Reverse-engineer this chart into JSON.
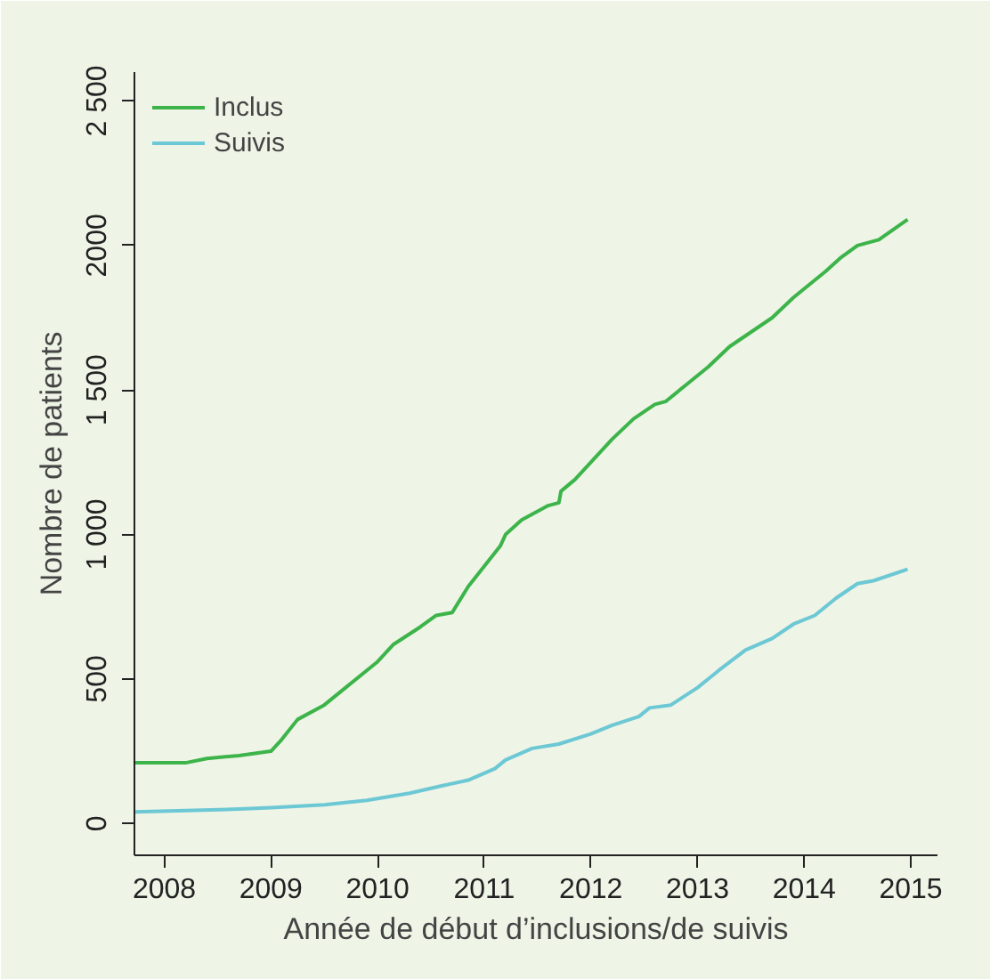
{
  "chart_data": {
    "type": "line",
    "xlabel": "Année de début d’inclusions/de suivis",
    "ylabel": "Nombre de patients",
    "xlim": [
      2007.72,
      2015.25
    ],
    "xticks": [
      2008,
      2009,
      2010,
      2011,
      2012,
      2013,
      2014,
      2015
    ],
    "ylim": [
      -110,
      2600
    ],
    "yticks": [
      0,
      500,
      {
        "value": 1000,
        "label": "1 000"
      },
      {
        "value": 1500,
        "label": "1 500"
      },
      2000,
      {
        "value": 2500,
        "label": "2 500"
      }
    ],
    "grid": false,
    "legend": "top left",
    "series": [
      {
        "name": "Inclus",
        "color": "#3cb44a",
        "x": [
          2007.72,
          2008.2,
          2008.4,
          2008.7,
          2009.0,
          2009.1,
          2009.25,
          2009.5,
          2009.7,
          2010.0,
          2010.15,
          2010.4,
          2010.55,
          2010.7,
          2010.85,
          2011.0,
          2011.15,
          2011.2,
          2011.35,
          2011.6,
          2011.7,
          2011.72,
          2011.85,
          2012.0,
          2012.2,
          2012.4,
          2012.6,
          2012.7,
          2012.9,
          2013.1,
          2013.3,
          2013.5,
          2013.7,
          2013.9,
          2014.0,
          2014.2,
          2014.35,
          2014.5,
          2014.7,
          2014.97
        ],
        "values": [
          210,
          210,
          225,
          235,
          250,
          290,
          360,
          410,
          470,
          560,
          620,
          680,
          720,
          730,
          820,
          890,
          960,
          1000,
          1050,
          1100,
          1110,
          1150,
          1190,
          1250,
          1330,
          1400,
          1450,
          1460,
          1520,
          1580,
          1650,
          1700,
          1750,
          1820,
          1850,
          1910,
          1960,
          2000,
          2020,
          2090
        ]
      },
      {
        "name": "Suivis",
        "color": "#6cc8d4",
        "x": [
          2007.72,
          2008.2,
          2008.7,
          2009.0,
          2009.5,
          2009.9,
          2010.3,
          2010.6,
          2010.85,
          2011.1,
          2011.2,
          2011.45,
          2011.7,
          2012.0,
          2012.2,
          2012.45,
          2012.55,
          2012.75,
          2013.0,
          2013.2,
          2013.45,
          2013.7,
          2013.9,
          2014.1,
          2014.3,
          2014.5,
          2014.65,
          2014.97
        ],
        "values": [
          40,
          45,
          50,
          55,
          65,
          80,
          105,
          130,
          150,
          190,
          220,
          260,
          275,
          310,
          340,
          370,
          400,
          410,
          470,
          530,
          600,
          640,
          690,
          720,
          780,
          830,
          840,
          880
        ]
      }
    ]
  }
}
